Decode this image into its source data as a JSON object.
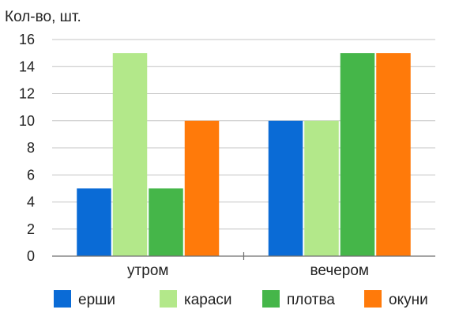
{
  "chart_data": {
    "type": "bar",
    "ylabel": "Кол-во, шт.",
    "ylim": [
      0,
      16
    ],
    "yticks": [
      0,
      2,
      4,
      6,
      8,
      10,
      12,
      14,
      16
    ],
    "grid": true,
    "legend_position": "bottom",
    "categories": [
      "утром",
      "вечером"
    ],
    "series": [
      {
        "name": "ерши",
        "color": "#0a6bd6",
        "values": [
          5,
          10
        ]
      },
      {
        "name": "караси",
        "color": "#b3e88a",
        "values": [
          15,
          10
        ]
      },
      {
        "name": "плотва",
        "color": "#45b649",
        "values": [
          5,
          15
        ]
      },
      {
        "name": "окуни",
        "color": "#ff7a0a",
        "values": [
          10,
          15
        ]
      }
    ]
  }
}
